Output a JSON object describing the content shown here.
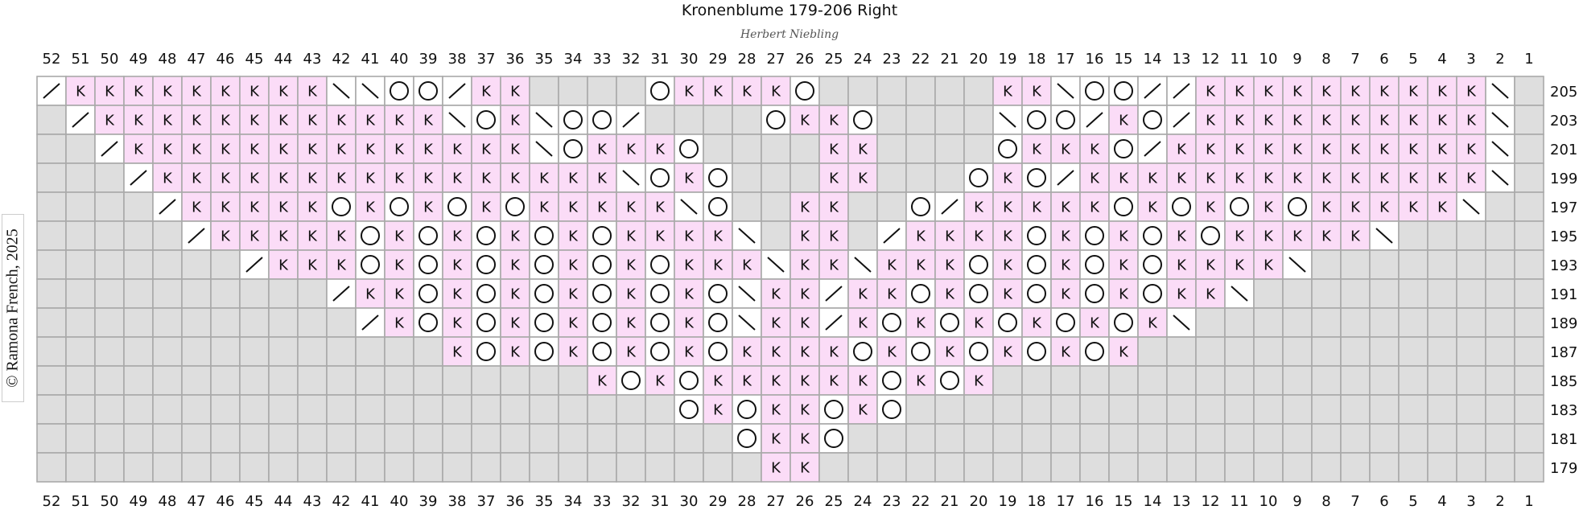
{
  "title": "Kronenblume 179-206   Right",
  "subtitle": "Herbert Niebling",
  "copyright": "© Ramona French, 2025",
  "colors": {
    "knit": "#fbdcf7",
    "empty": "#dedede",
    "open": "#ffffff",
    "grid": "#a9a9a9",
    "text": "#111111"
  },
  "legend": {
    "K": "knit",
    "O": "yarn over",
    "/": "right-leaning decrease",
    "\\": "left-leaning decrease",
    "-": "open cell",
    ".": "no stitch"
  },
  "column_labels": [
    52,
    51,
    50,
    49,
    48,
    47,
    46,
    45,
    44,
    43,
    42,
    41,
    40,
    39,
    38,
    37,
    36,
    35,
    34,
    33,
    32,
    31,
    30,
    29,
    28,
    27,
    26,
    25,
    24,
    23,
    22,
    21,
    20,
    19,
    18,
    17,
    16,
    15,
    14,
    13,
    12,
    11,
    10,
    9,
    8,
    7,
    6,
    5,
    4,
    3,
    2,
    1
  ],
  "row_labels": [
    205,
    203,
    201,
    199,
    197,
    195,
    193,
    191,
    189,
    187,
    185,
    183,
    181,
    179
  ],
  "rows": [
    "/KKKKKKKKK\\\\OO/KK....OKKKKO......KK\\OO//KKKKKKKKKK\\",
    "./KKKKKKKKKKKK\\OK\\OO/....OKKO....\\OO/KO/KKKKKKKKKK\\.",
    "../KKKKKKKKKKKKKK\\OKKKO....KK....OKKKO/KKKKKKKKKKK\\..",
    ".../KKKKKKKKKKKKKKKK\\OKO...KK...OKO/KKKKKKKKKKKKKK\\...",
    "..../KKKKKOKOKOKOKKKKK\\O..KK..O/KKKKKOKOKOKOKKKKK\\....",
    "...../KKKKKOKOKOKOKOKKKK\\.KK./KKKKOKOKOKOKKKKK\\.....",
    "....../KKKOKOKOKOKOKOKKK\\KK\\KKKOKOKOKOKKKK\\......",
    "......./KKOKOKOKOKOKO\\KK/KKOKOKOKOKOKK\\.......",
    "......../KOKOKOKOKOKO\\KK/KOKOKOKOKOK\\........",
    ".........KOKOKOKOKOKKKKOKOKOKOKOK.........",
    "...........KOKOKKKKKKOKOK...........",
    ".............OKOKKOKO.............",
    "..............OKKO..............",
    "...............KK..............."
  ]
}
